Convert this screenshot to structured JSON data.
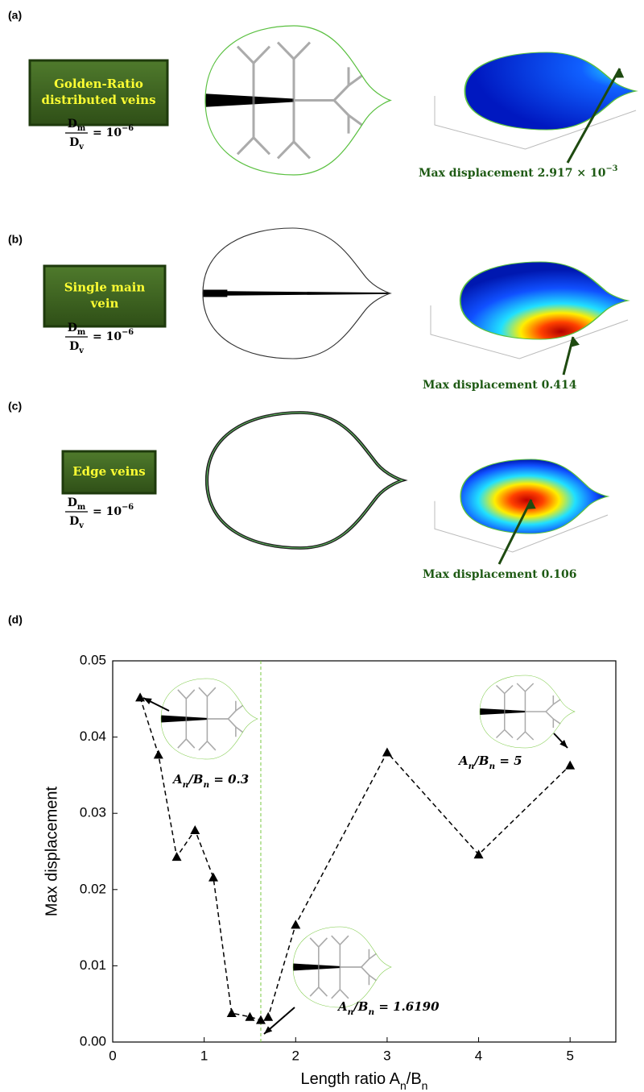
{
  "panels": [
    {
      "label": "(a)",
      "box_text": [
        "Golden-Ratio",
        "distributed veins"
      ],
      "ratio": [
        "D",
        "m",
        "D",
        "v",
        "= 10",
        "−6"
      ],
      "max_label": "Max displacement 2.917 × 10",
      "max_exp": "−3"
    },
    {
      "label": "(b)",
      "box_text": [
        "Single main",
        "vein"
      ],
      "ratio": [
        "D",
        "m",
        "D",
        "v",
        "= 10",
        "−6"
      ],
      "max_label": "Max displacement 0.414"
    },
    {
      "label": "(c)",
      "box_text": [
        "Edge veins"
      ],
      "ratio": [
        "D",
        "m",
        "D",
        "v",
        "= 10",
        "−6"
      ],
      "max_label": "Max displacement 0.106"
    }
  ],
  "chart_data": {
    "type": "line",
    "label": "(d)",
    "xlabel": [
      "Length ratio A",
      "n",
      "/B",
      "n"
    ],
    "ylabel": "Max displacement",
    "x": [
      0.3,
      0.5,
      0.7,
      0.9,
      1.1,
      1.3,
      1.5,
      1.619,
      1.7,
      2,
      3,
      4,
      5
    ],
    "series": [
      {
        "color": "#000000",
        "values": [
          0.0452,
          0.0377,
          0.0243,
          0.0278,
          0.0216,
          0.0038,
          0.0033,
          0.0029,
          0.0033,
          0.0154,
          0.038,
          0.0246,
          0.0363
        ]
      }
    ],
    "xlim": [
      0,
      5.5
    ],
    "ylim": [
      0,
      0.05
    ],
    "xticks": [
      0,
      1,
      2,
      3,
      4,
      5
    ],
    "yticks": [
      {
        "value": 0,
        "label": "0.00"
      },
      0.01,
      0.02,
      0.03,
      0.04,
      0.05
    ],
    "vline": 1.619,
    "vline_color": "#7ac943",
    "annotations": [
      [
        "A",
        "n",
        "/B",
        "n",
        " = 0.3"
      ],
      [
        "A",
        "n",
        "/B",
        "n",
        " = 5"
      ],
      [
        "A",
        "n",
        "/B",
        "n",
        " = 1.6190"
      ]
    ]
  }
}
